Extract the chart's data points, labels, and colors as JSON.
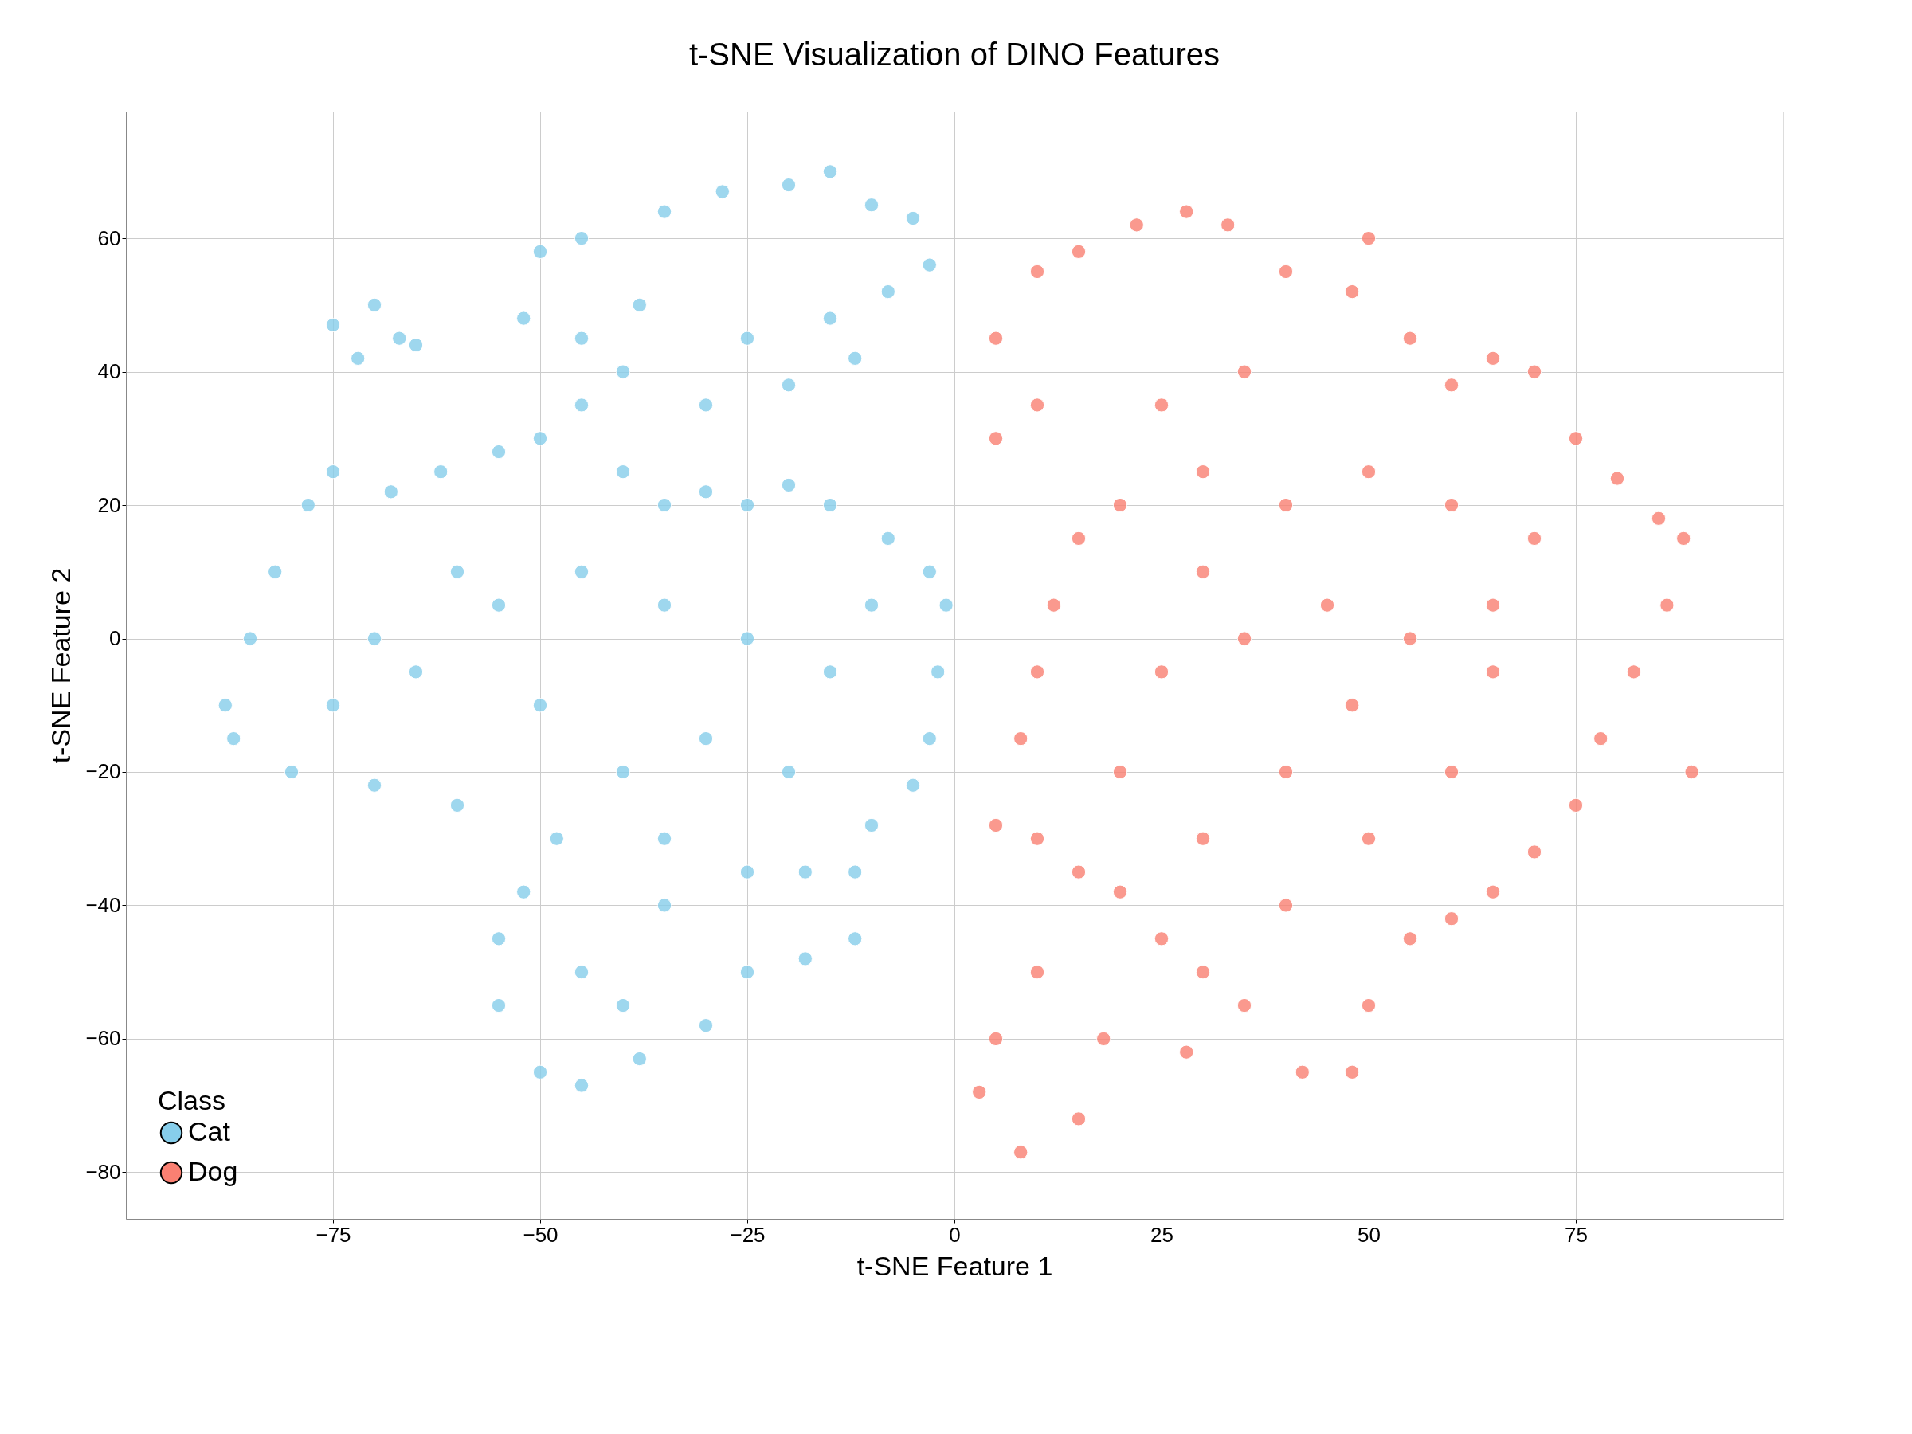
{
  "chart_data": {
    "type": "scatter",
    "title": "t-SNE Visualization of DINO Features",
    "xlabel": "t-SNE Feature 1",
    "ylabel": "t-SNE Feature 2",
    "legend_title": "Class",
    "xlim": [
      -100,
      100
    ],
    "ylim": [
      -87,
      79
    ],
    "xticks": [
      -75,
      -50,
      -25,
      0,
      25,
      50,
      75
    ],
    "yticks": [
      -80,
      -60,
      -40,
      -20,
      0,
      20,
      40,
      60
    ],
    "grid": true,
    "legend": "bottom left",
    "marker": "circle",
    "series": [
      {
        "name": "Cat",
        "color": "#87ceeb",
        "x": [
          -75,
          -70,
          -67,
          -72,
          -65,
          -50,
          -45,
          -35,
          -28,
          -20,
          -15,
          -10,
          -5,
          -3,
          -8,
          -15,
          -25,
          -38,
          -45,
          -52,
          -40,
          -30,
          -20,
          -12,
          -88,
          -85,
          -82,
          -78,
          -75,
          -68,
          -62,
          -55,
          -50,
          -45,
          -40,
          -35,
          -30,
          -25,
          -20,
          -15,
          -8,
          -3,
          -1,
          -2,
          -3,
          -5,
          -10,
          -12,
          -12,
          -18,
          -25,
          -30,
          -38,
          -45,
          -50,
          -55,
          -55,
          -52,
          -48,
          -60,
          -70,
          -80,
          -87,
          -75,
          -65,
          -55,
          -45,
          -35,
          -25,
          -15,
          -10,
          -30,
          -40,
          -20,
          -25,
          -35,
          -45,
          -60,
          -70,
          -50,
          -35,
          -18,
          -40
        ],
        "values": [
          47,
          50,
          45,
          42,
          44,
          58,
          60,
          64,
          67,
          68,
          70,
          65,
          63,
          56,
          52,
          48,
          45,
          50,
          45,
          48,
          40,
          35,
          38,
          42,
          -10,
          0,
          10,
          20,
          25,
          22,
          25,
          28,
          30,
          35,
          25,
          20,
          22,
          20,
          23,
          20,
          15,
          10,
          5,
          -5,
          -15,
          -22,
          -28,
          -35,
          -45,
          -48,
          -50,
          -58,
          -63,
          -67,
          -65,
          -55,
          -45,
          -38,
          -30,
          -25,
          -22,
          -20,
          -15,
          -10,
          -5,
          5,
          10,
          5,
          0,
          -5,
          5,
          -15,
          -20,
          -20,
          -35,
          -40,
          -50,
          10,
          0,
          -10,
          -30,
          -35,
          -55
        ]
      },
      {
        "name": "Dog",
        "color": "#fa8072",
        "x": [
          5,
          10,
          15,
          22,
          28,
          33,
          40,
          48,
          50,
          55,
          60,
          65,
          70,
          75,
          80,
          85,
          88,
          86,
          82,
          78,
          75,
          70,
          65,
          60,
          55,
          50,
          48,
          42,
          35,
          30,
          25,
          20,
          15,
          10,
          5,
          8,
          10,
          12,
          15,
          20,
          10,
          5,
          25,
          35,
          30,
          40,
          50,
          60,
          70,
          45,
          35,
          55,
          65,
          25,
          20,
          40,
          50,
          60,
          30,
          40,
          10,
          5,
          3,
          8,
          15,
          18,
          28,
          89,
          48,
          30,
          65
        ],
        "values": [
          45,
          55,
          58,
          62,
          64,
          62,
          55,
          52,
          60,
          45,
          38,
          42,
          40,
          30,
          24,
          18,
          15,
          5,
          -5,
          -15,
          -25,
          -32,
          -38,
          -42,
          -45,
          -55,
          -65,
          -65,
          -55,
          -50,
          -45,
          -38,
          -35,
          -30,
          -28,
          -15,
          -5,
          5,
          15,
          20,
          35,
          30,
          35,
          40,
          25,
          20,
          25,
          20,
          15,
          5,
          0,
          0,
          -5,
          -5,
          -20,
          -20,
          -30,
          -20,
          -30,
          -40,
          -50,
          -60,
          -68,
          -77,
          -72,
          -60,
          -62,
          -20,
          -10,
          10,
          5
        ]
      }
    ]
  }
}
